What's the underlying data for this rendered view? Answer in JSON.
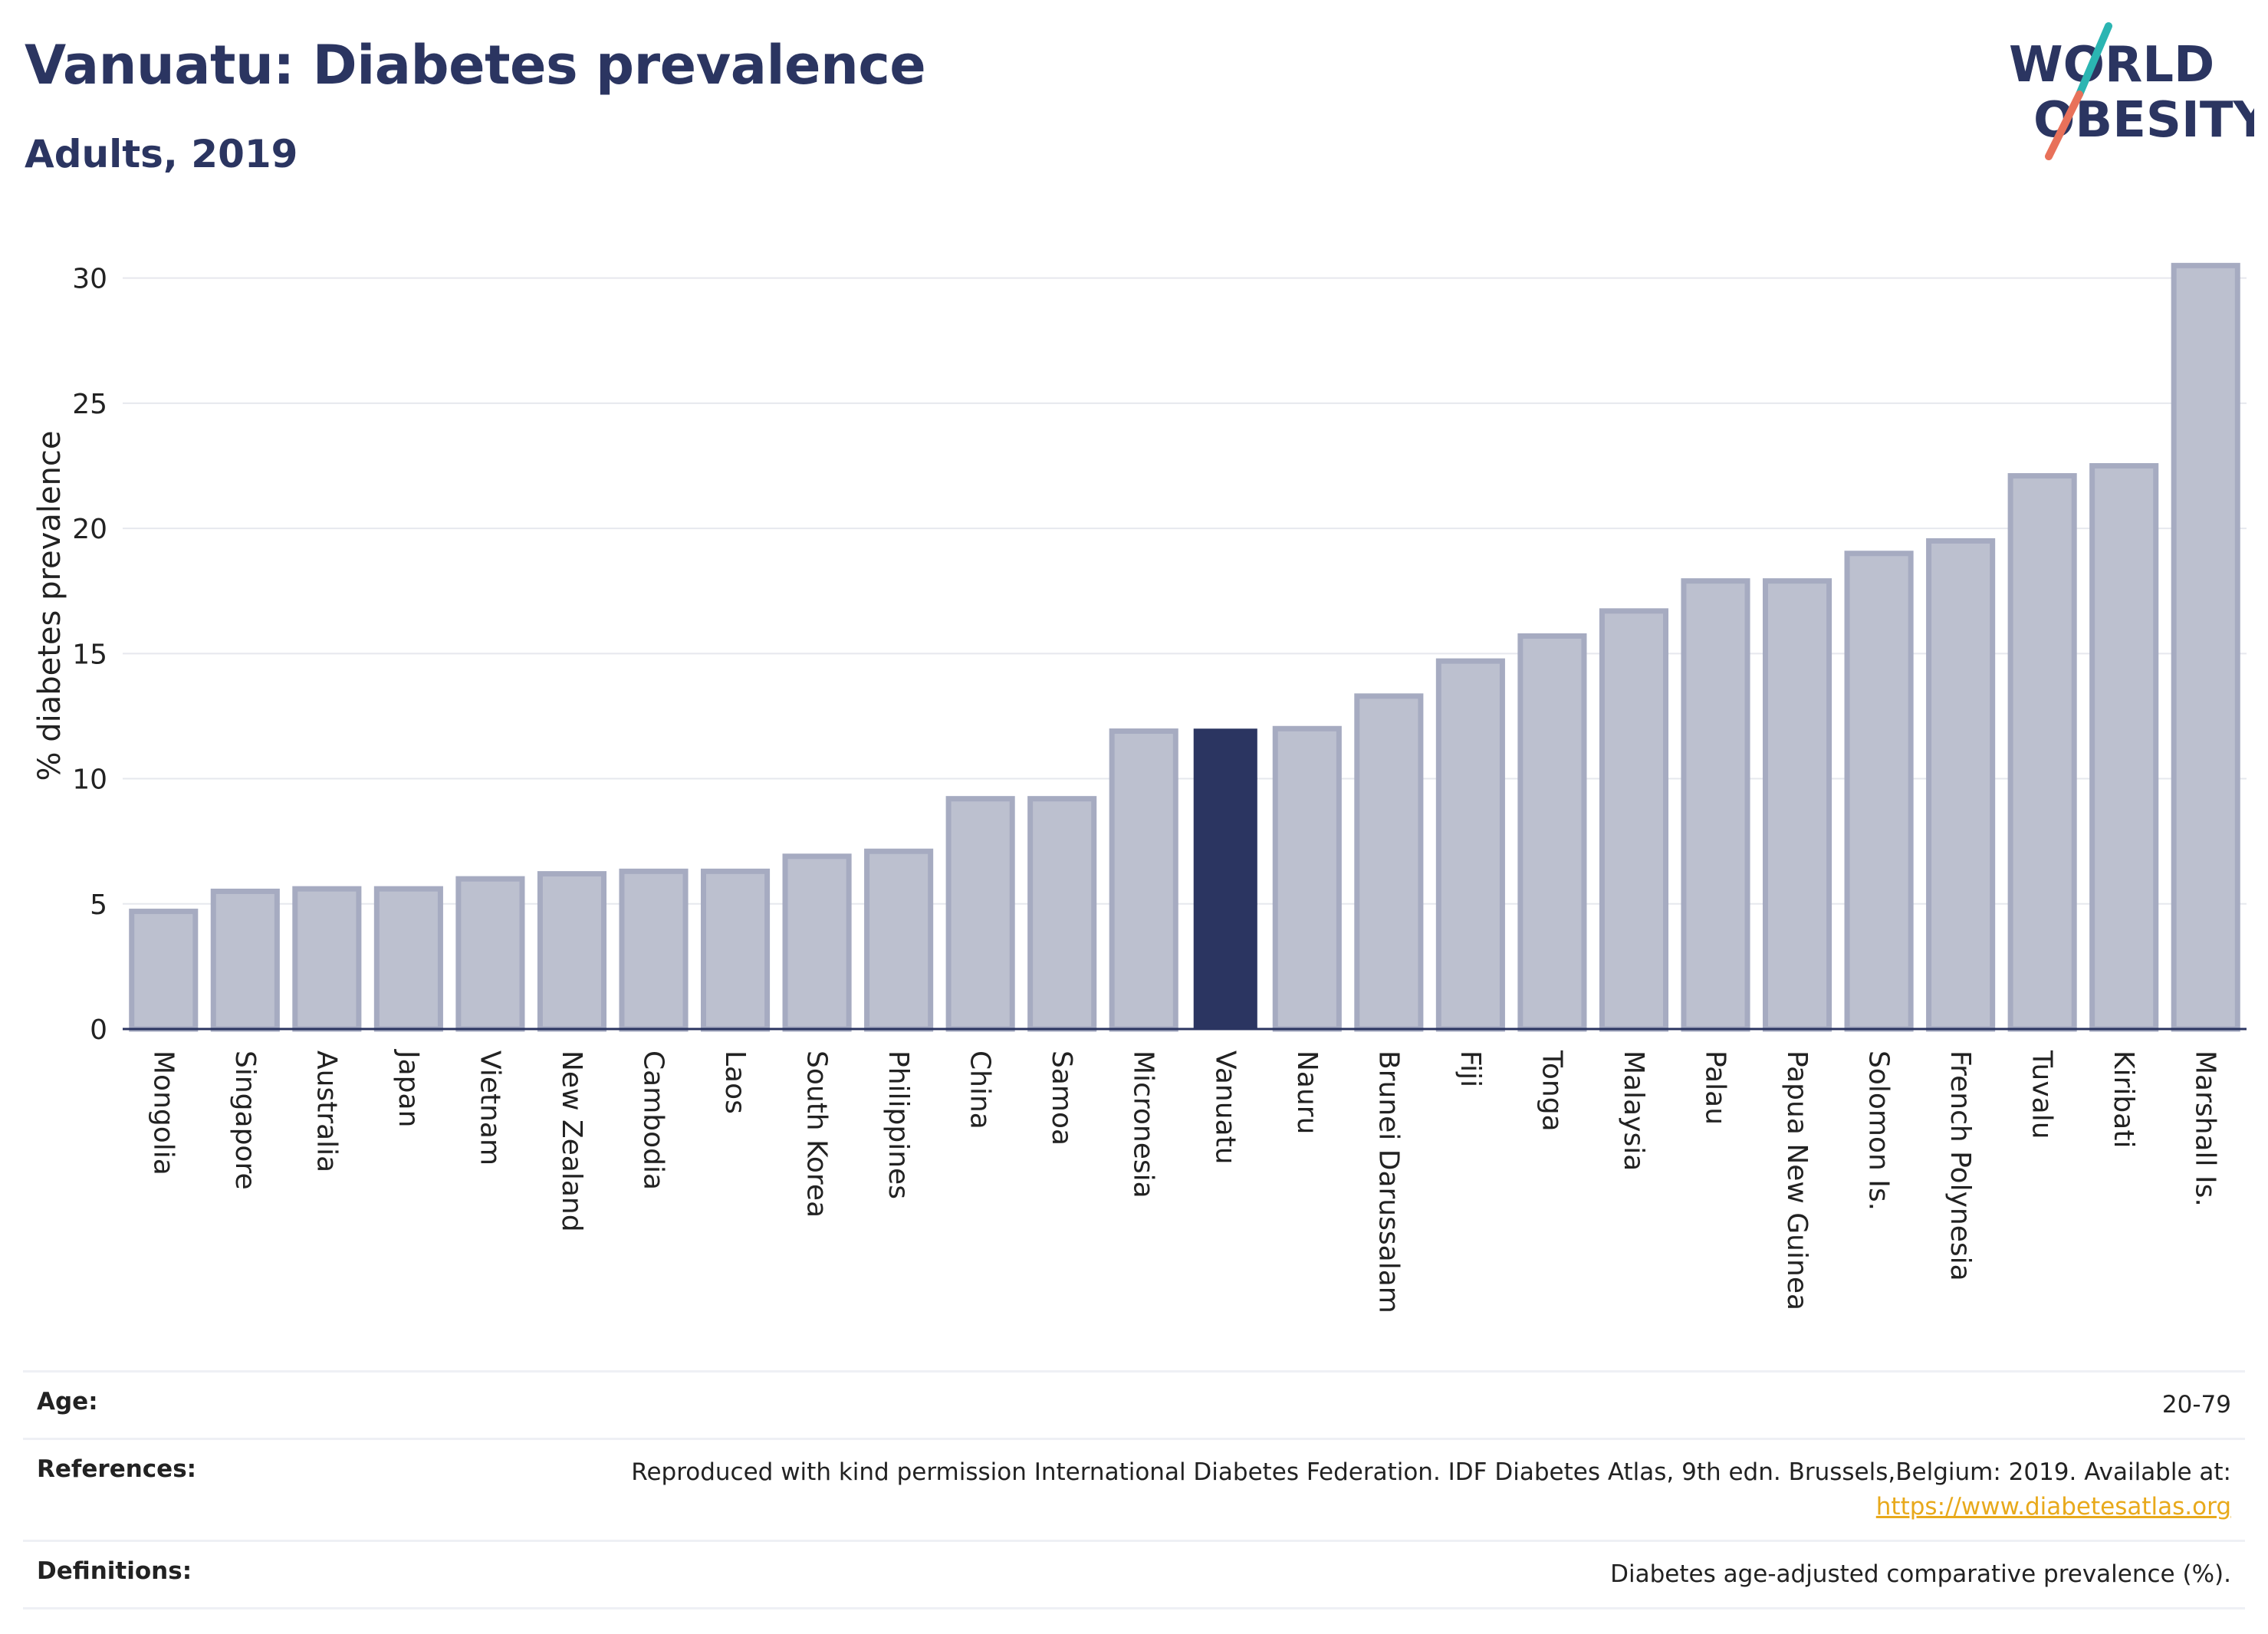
{
  "header": {
    "title": "Vanuatu: Diabetes prevalence",
    "subtitle": "Adults, 2019"
  },
  "logo": {
    "line1": "WORLD",
    "line2": "OBESITY",
    "colors": {
      "text": "#2b3561",
      "slash_top": "#2bb5b2",
      "slash_bottom": "#e8715a"
    }
  },
  "colors": {
    "bar": "#bcc0cf",
    "bar_stroke": "#a6abc1",
    "highlight": "#2b3561",
    "grid": "#e6e8ee",
    "axis": "#2b3561",
    "link": "#e8a91b"
  },
  "chart_data": {
    "type": "bar",
    "title": "Vanuatu: Diabetes prevalence",
    "subtitle": "Adults, 2019",
    "xlabel": "",
    "ylabel": "% diabetes prevalence",
    "ylim": [
      0,
      31
    ],
    "yticks": [
      0,
      5,
      10,
      15,
      20,
      25,
      30
    ],
    "grid": true,
    "highlight": "Vanuatu",
    "categories": [
      "Mongolia",
      "Singapore",
      "Australia",
      "Japan",
      "Vietnam",
      "New Zealand",
      "Cambodia",
      "Laos",
      "South Korea",
      "Philippines",
      "China",
      "Samoa",
      "Micronesia",
      "Vanuatu",
      "Nauru",
      "Brunei Darussalam",
      "Fiji",
      "Tonga",
      "Malaysia",
      "Palau",
      "Papua New Guinea",
      "Solomon Is.",
      "French Polynesia",
      "Tuvalu",
      "Kiribati",
      "Marshall Is."
    ],
    "values": [
      4.7,
      5.5,
      5.6,
      5.6,
      6.0,
      6.2,
      6.3,
      6.3,
      6.9,
      7.1,
      9.2,
      9.2,
      11.9,
      12.0,
      12.0,
      13.3,
      14.7,
      15.7,
      16.7,
      17.9,
      17.9,
      19.0,
      19.5,
      22.1,
      22.5,
      30.5
    ]
  },
  "info": [
    {
      "key": "Age:",
      "value": "20-79"
    },
    {
      "key": "References:",
      "value": "Reproduced with kind permission International Diabetes Federation. IDF Diabetes Atlas, 9th edn. Brussels,Belgium: 2019. Available at:",
      "link": "https://www.diabetesatlas.org"
    },
    {
      "key": "Definitions:",
      "value": "Diabetes age-adjusted comparative prevalence (%)."
    }
  ]
}
